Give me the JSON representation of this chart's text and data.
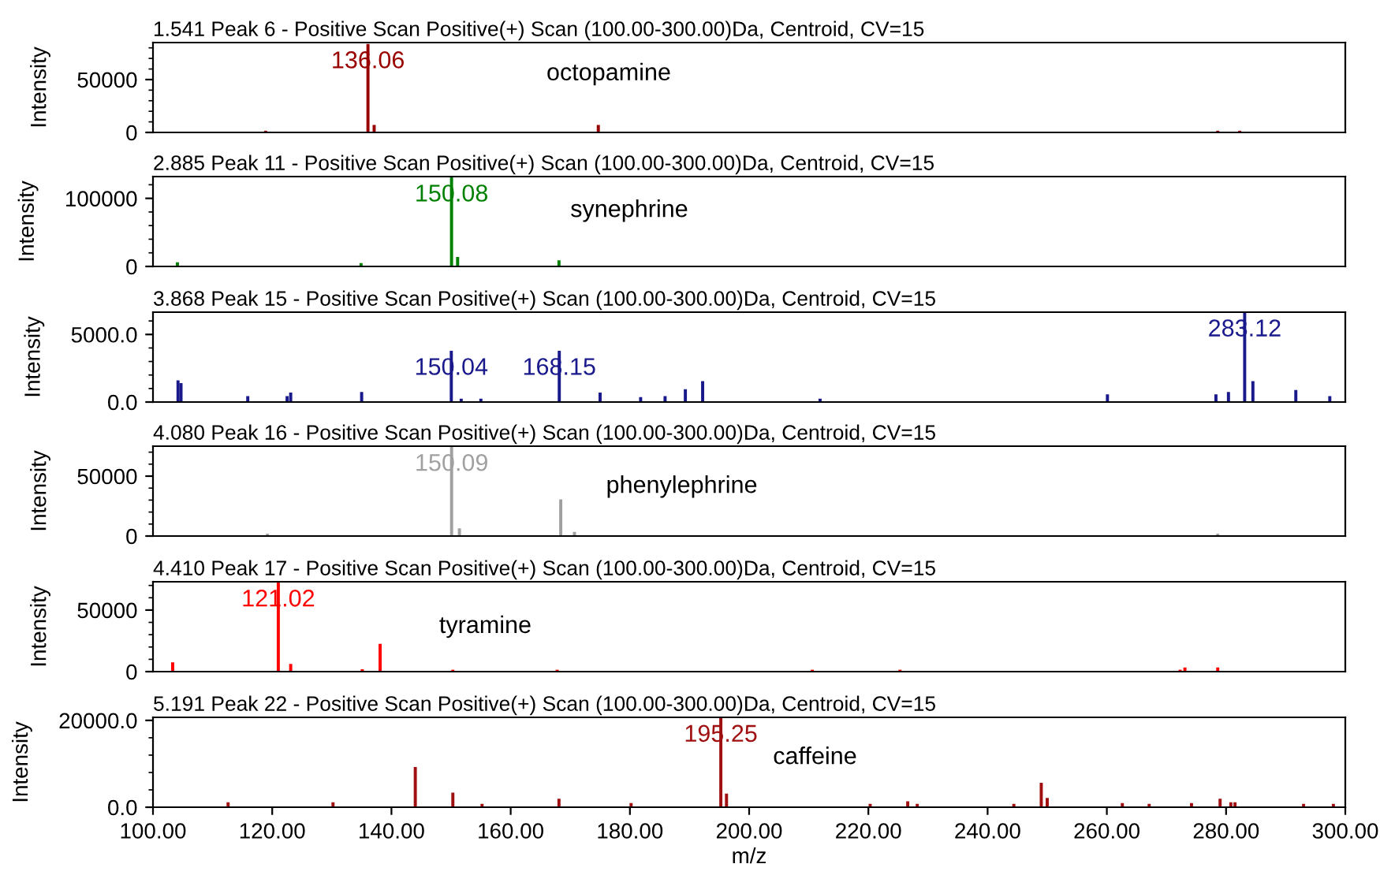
{
  "chart_data": [
    {
      "type": "bar",
      "title": "1.541 Peak 6 - Positive Scan Positive(+) Scan (100.00-300.00)Da, Centroid, CV=15",
      "ylabel": "Intensity",
      "xlim": [
        100,
        300
      ],
      "ylim": [
        0,
        85000
      ],
      "yticks": [
        0,
        50000
      ],
      "tick_labels": "y",
      "x": [
        118.9,
        136.06,
        137.1,
        174.7,
        278.6,
        282.3
      ],
      "series": [
        {
          "color": "#990000",
          "values": [
            1000,
            83000,
            6500,
            6500,
            1000,
            1000
          ]
        }
      ],
      "annotations": [
        {
          "text": "136.06",
          "x": 136.06,
          "y": 83000
        },
        "octopamine"
      ]
    },
    {
      "type": "bar",
      "title": "2.885 Peak 11 - Positive Scan Positive(+) Scan (100.00-300.00)Da, Centroid, CV=15",
      "ylabel": "Intensity",
      "xlim": [
        100,
        300
      ],
      "ylim": [
        0,
        132000
      ],
      "yticks": [
        0,
        100000
      ],
      "tick_labels": "y",
      "x": [
        104.1,
        134.9,
        150.08,
        151.1,
        168.1
      ],
      "series": [
        {
          "color": "#008000",
          "values": [
            5000,
            4000,
            130000,
            13000,
            8000
          ]
        }
      ],
      "annotations": [
        {
          "text": "150.08",
          "x": 150.08,
          "y": 130000
        },
        "synephrine"
      ]
    },
    {
      "type": "bar",
      "title": "3.868 Peak 15 - Positive Scan Positive(+) Scan (100.00-300.00)Da, Centroid, CV=15",
      "ylabel": "Intensity",
      "xlim": [
        100,
        300
      ],
      "ylim": [
        0,
        6650
      ],
      "yticks": [
        {
          "value": 0,
          "label": "0.0"
        },
        {
          "value": 5000,
          "label": "5000.0"
        }
      ],
      "tick_labels": "y",
      "x": [
        104.2,
        104.7,
        115.9,
        122.5,
        123.1,
        135.0,
        150.04,
        151.7,
        155.0,
        168.15,
        175.0,
        181.8,
        185.9,
        189.3,
        192.2,
        211.9,
        260.1,
        278.3,
        280.4,
        283.12,
        284.5,
        291.7,
        297.4
      ],
      "series": [
        {
          "color": "#1a1a8c",
          "values": [
            1550,
            1350,
            390,
            390,
            650,
            700,
            3750,
            200,
            200,
            3750,
            650,
            320,
            390,
            900,
            1500,
            200,
            520,
            520,
            700,
            6600,
            1500,
            840,
            390
          ]
        }
      ],
      "annotations": [
        {
          "text": "150.04",
          "x": 150.04,
          "y": 3750
        },
        {
          "text": "168.15",
          "x": 168.15,
          "y": 3750
        },
        {
          "text": "283.12",
          "x": 283.12,
          "y": 6600
        }
      ]
    },
    {
      "type": "bar",
      "title": "4.080 Peak 16 - Positive Scan Positive(+) Scan (100.00-300.00)Da, Centroid, CV=15",
      "ylabel": "Intensity",
      "xlim": [
        100,
        300
      ],
      "ylim": [
        0,
        75000
      ],
      "yticks": [
        0,
        50000
      ],
      "tick_labels": "y",
      "x": [
        119.2,
        150.09,
        151.4,
        168.4,
        170.7,
        278.6
      ],
      "series": [
        {
          "color": "#a0a0a0",
          "values": [
            1500,
            74000,
            5900,
            30000,
            2900,
            1500
          ]
        }
      ],
      "annotations": [
        {
          "text": "150.09",
          "x": 150.09,
          "y": 74000
        },
        "phenylephrine"
      ]
    },
    {
      "type": "bar",
      "title": "4.410 Peak 17 - Positive Scan Positive(+) Scan (100.00-300.00)Da, Centroid, CV=15",
      "ylabel": "Intensity",
      "xlim": [
        100,
        300
      ],
      "ylim": [
        0,
        73000
      ],
      "yticks": [
        0,
        50000
      ],
      "tick_labels": "y",
      "x": [
        103.3,
        121.02,
        123.1,
        135.1,
        138.1,
        150.3,
        167.8,
        210.6,
        225.3,
        272.3,
        273.1,
        278.6
      ],
      "series": [
        {
          "color": "#ff0000",
          "values": [
            7000,
            72000,
            5700,
            1400,
            22000,
            1000,
            1000,
            1000,
            1000,
            1000,
            2800,
            2800
          ]
        }
      ],
      "annotations": [
        {
          "text": "121.02",
          "x": 121.02,
          "y": 72000
        },
        "tyramine"
      ]
    },
    {
      "type": "bar",
      "title": "5.191 Peak 22 - Positive Scan Positive(+) Scan (100.00-300.00)Da, Centroid, CV=15",
      "ylabel": "Intensity",
      "xlabel": "m/z",
      "xlim": [
        100,
        300
      ],
      "ylim": [
        0,
        20700
      ],
      "yticks": [
        {
          "value": 0,
          "label": "0.0"
        },
        {
          "value": 20000,
          "label": "20000.0"
        }
      ],
      "xticks": [
        {
          "value": 100,
          "label": "100.00"
        },
        {
          "value": 120,
          "label": "120.00"
        },
        {
          "value": 140,
          "label": "140.00"
        },
        {
          "value": 160,
          "label": "160.00"
        },
        {
          "value": 180,
          "label": "180.00"
        },
        {
          "value": 200,
          "label": "200.00"
        },
        {
          "value": 220,
          "label": "220.00"
        },
        {
          "value": 240,
          "label": "240.00"
        },
        {
          "value": 260,
          "label": "260.00"
        },
        {
          "value": 280,
          "label": "280.00"
        },
        {
          "value": 300,
          "label": "300.00"
        }
      ],
      "x": [
        112.6,
        130.2,
        144.0,
        150.3,
        155.2,
        168.1,
        180.2,
        195.25,
        196.2,
        220.3,
        226.6,
        228.2,
        244.4,
        249.0,
        250.0,
        262.6,
        267.1,
        274.2,
        279.0,
        280.8,
        281.5,
        293.0,
        298.0
      ],
      "series": [
        {
          "color": "#a01010",
          "values": [
            1000,
            1000,
            9100,
            3200,
            600,
            1800,
            800,
            20500,
            3000,
            600,
            1200,
            600,
            600,
            5500,
            2000,
            800,
            600,
            800,
            1800,
            1000,
            1000,
            600,
            600
          ]
        }
      ],
      "annotations": [
        {
          "text": "195.25",
          "x": 195.25,
          "y": 20500
        },
        "caffeine"
      ]
    }
  ]
}
